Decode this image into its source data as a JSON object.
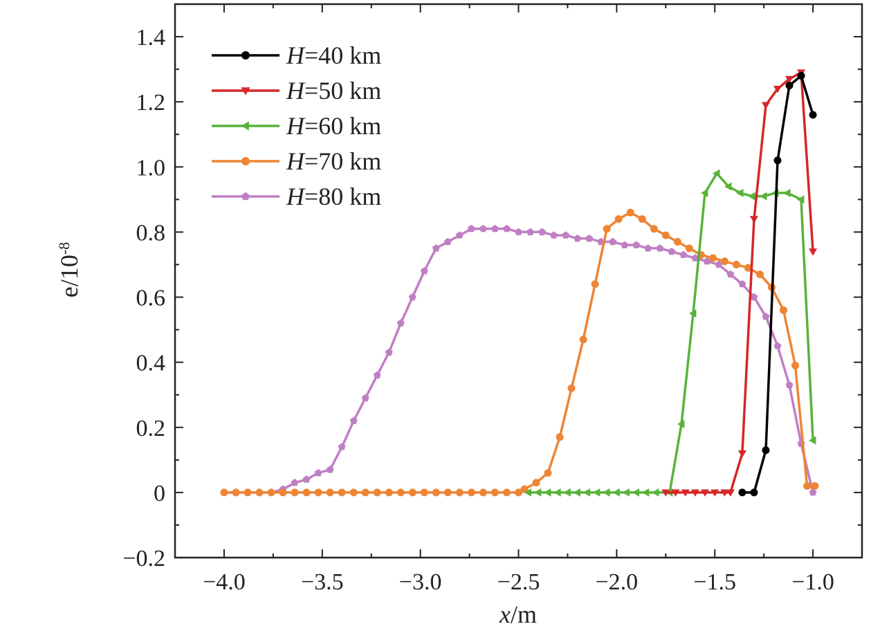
{
  "chart_data": {
    "type": "line",
    "xlabel": "x/m",
    "ylabel": "e/10-8",
    "xlim": [
      -4.25,
      -0.75
    ],
    "ylim": [
      -0.2,
      1.5
    ],
    "x_ticks": [
      -4.0,
      -3.5,
      -3.0,
      -2.5,
      -2.0,
      -1.5,
      -1.0
    ],
    "x_tick_labels": [
      "−4.0",
      "−3.5",
      "−3.0",
      "−2.5",
      "−2.0",
      "−1.5",
      "−1.0"
    ],
    "y_ticks": [
      -0.2,
      0,
      0.2,
      0.4,
      0.6,
      0.8,
      1.0,
      1.2,
      1.4
    ],
    "y_tick_labels": [
      "−0.2",
      "0",
      "0.2",
      "0.4",
      "0.6",
      "0.8",
      "1.0",
      "1.2",
      "1.4"
    ],
    "grid": false,
    "legend_position": "top-left",
    "series": [
      {
        "name": "H=40 km",
        "legend_italic": "H",
        "legend_rest": "=40 km",
        "color": "#000000",
        "marker": "circle",
        "x": [
          -1.36,
          -1.3,
          -1.24,
          -1.18,
          -1.12,
          -1.06,
          -1.0
        ],
        "y": [
          0.0,
          0.0,
          0.13,
          1.02,
          1.25,
          1.28,
          1.16
        ]
      },
      {
        "name": "H=50 km",
        "legend_italic": "H",
        "legend_rest": "=50 km",
        "color": "#d62728",
        "marker": "triangle-down",
        "x": [
          -1.75,
          -1.7,
          -1.65,
          -1.6,
          -1.55,
          -1.5,
          -1.45,
          -1.42,
          -1.36,
          -1.3,
          -1.24,
          -1.18,
          -1.12,
          -1.06,
          -1.0
        ],
        "y": [
          0.0,
          0.0,
          0.0,
          0.0,
          0.0,
          0.0,
          0.0,
          0.0,
          0.12,
          0.84,
          1.19,
          1.24,
          1.27,
          1.29,
          0.74
        ]
      },
      {
        "name": "H=60 km",
        "legend_italic": "H",
        "legend_rest": "=60 km",
        "color": "#59b33a",
        "marker": "triangle-left",
        "x": [
          -2.45,
          -2.4,
          -2.35,
          -2.3,
          -2.25,
          -2.2,
          -2.15,
          -2.1,
          -2.05,
          -2.0,
          -1.95,
          -1.9,
          -1.85,
          -1.8,
          -1.73,
          -1.67,
          -1.61,
          -1.55,
          -1.49,
          -1.43,
          -1.37,
          -1.31,
          -1.25,
          -1.19,
          -1.13,
          -1.06,
          -1.0
        ],
        "y": [
          0.0,
          0.0,
          0.0,
          0.0,
          0.0,
          0.0,
          0.0,
          0.0,
          0.0,
          0.0,
          0.0,
          0.0,
          0.0,
          0.0,
          0.0,
          0.21,
          0.55,
          0.92,
          0.98,
          0.94,
          0.92,
          0.91,
          0.91,
          0.92,
          0.92,
          0.9,
          0.16
        ]
      },
      {
        "name": "H=70 km",
        "legend_italic": "H",
        "legend_rest": "=70 km",
        "color": "#ed8534",
        "marker": "circle",
        "x": [
          -4.0,
          -3.94,
          -3.88,
          -3.82,
          -3.76,
          -3.7,
          -3.64,
          -3.58,
          -3.52,
          -3.46,
          -3.4,
          -3.34,
          -3.28,
          -3.22,
          -3.16,
          -3.1,
          -3.04,
          -2.98,
          -2.92,
          -2.86,
          -2.8,
          -2.74,
          -2.68,
          -2.62,
          -2.56,
          -2.5,
          -2.47,
          -2.41,
          -2.35,
          -2.29,
          -2.23,
          -2.17,
          -2.11,
          -2.05,
          -1.99,
          -1.93,
          -1.87,
          -1.81,
          -1.75,
          -1.69,
          -1.63,
          -1.57,
          -1.51,
          -1.45,
          -1.39,
          -1.33,
          -1.27,
          -1.21,
          -1.15,
          -1.09,
          -1.03,
          -0.99
        ],
        "y": [
          0,
          0,
          0,
          0,
          0,
          0,
          0,
          0,
          0,
          0,
          0,
          0,
          0,
          0,
          0,
          0,
          0,
          0,
          0,
          0,
          0,
          0,
          0,
          0,
          0,
          0,
          0.01,
          0.03,
          0.06,
          0.17,
          0.32,
          0.47,
          0.64,
          0.81,
          0.84,
          0.86,
          0.84,
          0.81,
          0.79,
          0.77,
          0.75,
          0.73,
          0.72,
          0.71,
          0.7,
          0.69,
          0.67,
          0.63,
          0.56,
          0.39,
          0.02,
          0.02
        ]
      },
      {
        "name": "H=80 km",
        "legend_italic": "H",
        "legend_rest": "=80 km",
        "color": "#c07fc4",
        "marker": "pentagon",
        "x": [
          -4.0,
          -3.94,
          -3.88,
          -3.82,
          -3.76,
          -3.7,
          -3.64,
          -3.58,
          -3.52,
          -3.46,
          -3.4,
          -3.34,
          -3.28,
          -3.22,
          -3.16,
          -3.1,
          -3.04,
          -2.98,
          -2.92,
          -2.86,
          -2.8,
          -2.74,
          -2.68,
          -2.62,
          -2.56,
          -2.5,
          -2.44,
          -2.38,
          -2.32,
          -2.26,
          -2.2,
          -2.14,
          -2.08,
          -2.02,
          -1.96,
          -1.9,
          -1.84,
          -1.78,
          -1.72,
          -1.66,
          -1.6,
          -1.54,
          -1.48,
          -1.42,
          -1.36,
          -1.3,
          -1.24,
          -1.18,
          -1.12,
          -1.06,
          -1.0
        ],
        "y": [
          0,
          0,
          0,
          0,
          0,
          0.01,
          0.03,
          0.04,
          0.06,
          0.07,
          0.14,
          0.22,
          0.29,
          0.36,
          0.43,
          0.52,
          0.6,
          0.68,
          0.75,
          0.77,
          0.79,
          0.81,
          0.81,
          0.81,
          0.81,
          0.8,
          0.8,
          0.8,
          0.79,
          0.79,
          0.78,
          0.78,
          0.77,
          0.77,
          0.76,
          0.76,
          0.75,
          0.75,
          0.74,
          0.73,
          0.72,
          0.71,
          0.7,
          0.67,
          0.64,
          0.6,
          0.54,
          0.45,
          0.33,
          0.15,
          0.0
        ]
      }
    ]
  }
}
